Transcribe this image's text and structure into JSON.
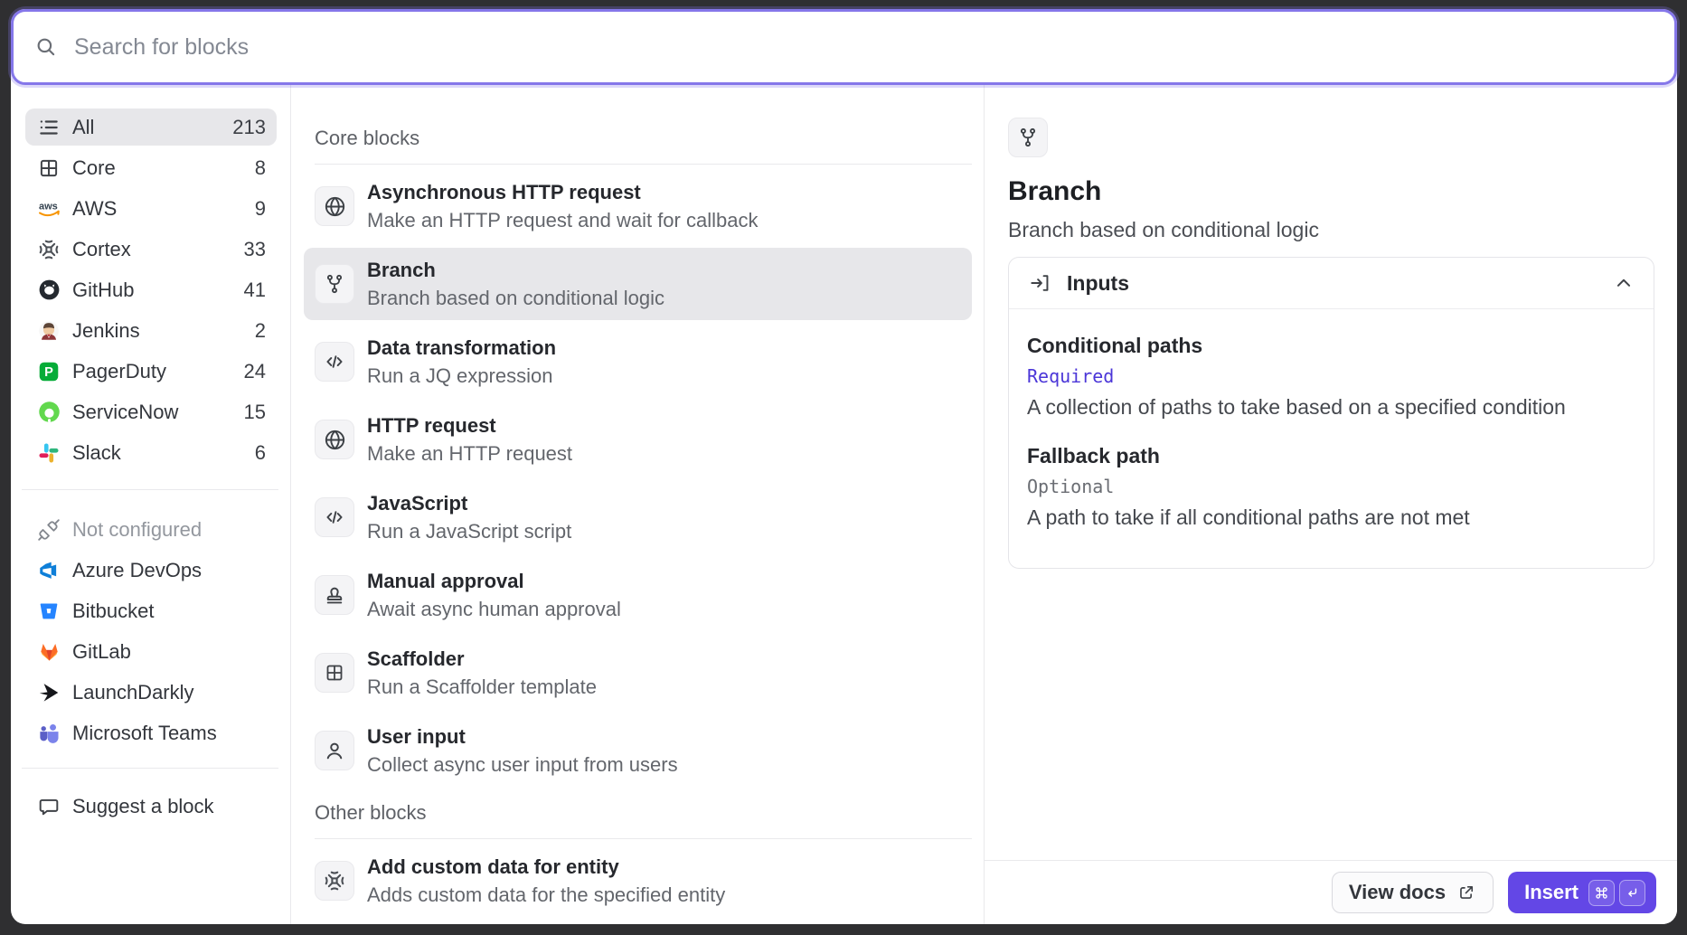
{
  "search": {
    "placeholder": "Search for blocks"
  },
  "sidebar": {
    "categories": [
      {
        "label": "All",
        "count": "213",
        "icon": "list-icon",
        "selected": true
      },
      {
        "label": "Core",
        "count": "8",
        "icon": "grid-icon",
        "selected": false
      },
      {
        "label": "AWS",
        "count": "9",
        "icon": "aws-icon",
        "selected": false
      },
      {
        "label": "Cortex",
        "count": "33",
        "icon": "cortex-icon",
        "selected": false
      },
      {
        "label": "GitHub",
        "count": "41",
        "icon": "github-icon",
        "selected": false
      },
      {
        "label": "Jenkins",
        "count": "2",
        "icon": "jenkins-icon",
        "selected": false
      },
      {
        "label": "PagerDuty",
        "count": "24",
        "icon": "pagerduty-icon",
        "selected": false
      },
      {
        "label": "ServiceNow",
        "count": "15",
        "icon": "servicenow-icon",
        "selected": false
      },
      {
        "label": "Slack",
        "count": "6",
        "icon": "slack-icon",
        "selected": false
      }
    ],
    "not_configured": [
      {
        "label": "Not configured",
        "icon": "unplug-icon",
        "muted": true
      },
      {
        "label": "Azure DevOps",
        "icon": "azure-devops-icon",
        "muted": false
      },
      {
        "label": "Bitbucket",
        "icon": "bitbucket-icon",
        "muted": false
      },
      {
        "label": "GitLab",
        "icon": "gitlab-icon",
        "muted": false
      },
      {
        "label": "LaunchDarkly",
        "icon": "launchdarkly-icon",
        "muted": false
      },
      {
        "label": "Microsoft Teams",
        "icon": "teams-icon",
        "muted": false
      }
    ],
    "suggest": {
      "label": "Suggest a block",
      "icon": "speech-bubble-icon"
    }
  },
  "blocks": {
    "sections": [
      {
        "header": "Core blocks",
        "items": [
          {
            "title": "Asynchronous HTTP request",
            "description": "Make an HTTP request and wait for callback",
            "icon": "globe-icon",
            "selected": false
          },
          {
            "title": "Branch",
            "description": "Branch based on conditional logic",
            "icon": "branch-icon",
            "selected": true
          },
          {
            "title": "Data transformation",
            "description": "Run a JQ expression",
            "icon": "code-icon",
            "selected": false
          },
          {
            "title": "HTTP request",
            "description": "Make an HTTP request",
            "icon": "globe-icon",
            "selected": false
          },
          {
            "title": "JavaScript",
            "description": "Run a JavaScript script",
            "icon": "code-icon",
            "selected": false
          },
          {
            "title": "Manual approval",
            "description": "Await async human approval",
            "icon": "stamp-icon",
            "selected": false
          },
          {
            "title": "Scaffolder",
            "description": "Run a Scaffolder template",
            "icon": "table-icon",
            "selected": false
          },
          {
            "title": "User input",
            "description": "Collect async user input from users",
            "icon": "user-icon",
            "selected": false
          }
        ]
      },
      {
        "header": "Other blocks",
        "items": [
          {
            "title": "Add custom data for entity",
            "description": "Adds custom data for the specified entity",
            "icon": "cortex-icon",
            "selected": false
          }
        ]
      }
    ]
  },
  "detail": {
    "icon": "branch-icon",
    "title": "Branch",
    "description": "Branch based on conditional logic",
    "inputs_card": {
      "header": "Inputs",
      "fields": [
        {
          "name": "Conditional paths",
          "requirement": "Required",
          "requirement_style": "required",
          "description": "A collection of paths to take based on a specified condition"
        },
        {
          "name": "Fallback path",
          "requirement": "Optional",
          "requirement_style": "optional",
          "description": "A path to take if all conditional paths are not met"
        }
      ]
    },
    "footer": {
      "view_docs_label": "View docs",
      "insert_label": "Insert",
      "shortcuts": [
        {
          "key": "cmd",
          "symbol": "⌘"
        },
        {
          "key": "return",
          "symbol": "⏎"
        }
      ]
    }
  },
  "colors": {
    "backdrop": "#2f2f31",
    "accent_purple": "#6347e6",
    "focus_ring": "#8577ea",
    "required_text": "#4b36d8",
    "selected_row": "#e7e7ea"
  }
}
